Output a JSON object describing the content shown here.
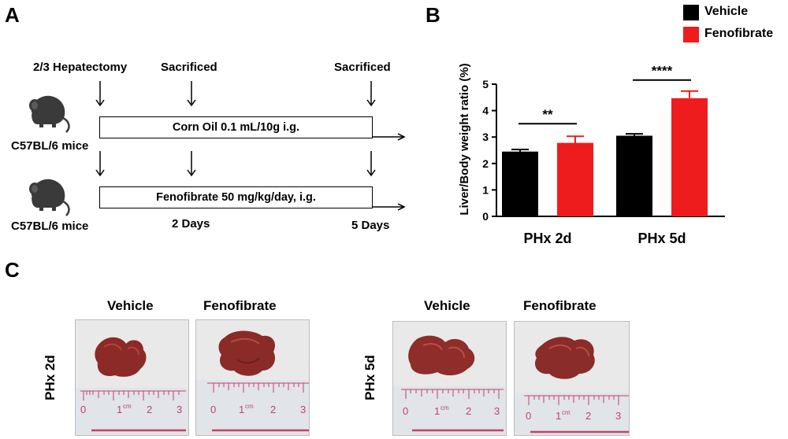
{
  "panels": {
    "a": {
      "letter": "A"
    },
    "b": {
      "letter": "B"
    },
    "c": {
      "letter": "C"
    }
  },
  "timeline": {
    "timepoints": [
      "2/3 Hepatectomy",
      "Sacrificed",
      "Sacrificed"
    ],
    "strain": "C57BL/6 mice",
    "treatments": [
      "Corn Oil 0.1 mL/10g i.g.",
      "Fenofibrate 50 mg/kg/day, i.g."
    ],
    "days": [
      "2 Days",
      "5 Days"
    ]
  },
  "chart_data": {
    "type": "bar",
    "categories": [
      "PHx 2d",
      "PHx 5d"
    ],
    "series": [
      {
        "name": "Vehicle",
        "color": "#000000",
        "values": [
          2.45,
          3.05
        ],
        "errors": [
          0.08,
          0.07
        ]
      },
      {
        "name": "Fenofibrate",
        "color": "#ee1c1c",
        "values": [
          2.78,
          4.47
        ],
        "errors": [
          0.25,
          0.27
        ]
      }
    ],
    "ylabel": "Liver/Body weight ratio (%)",
    "xlabel": "",
    "ylim": [
      0,
      5
    ],
    "yticks": [
      "0",
      "1",
      "2",
      "3",
      "4",
      "5"
    ],
    "significance": [
      "**",
      "****"
    ],
    "legend_position": "top-right"
  },
  "photos": {
    "columns": [
      "Vehicle",
      "Fenofibrate",
      "Vehicle",
      "Fenofibrate"
    ],
    "rows": [
      "PHx 2d",
      "PHx 5d"
    ],
    "ruler_marks": [
      "0",
      "1",
      "cm",
      "2",
      "3"
    ]
  }
}
